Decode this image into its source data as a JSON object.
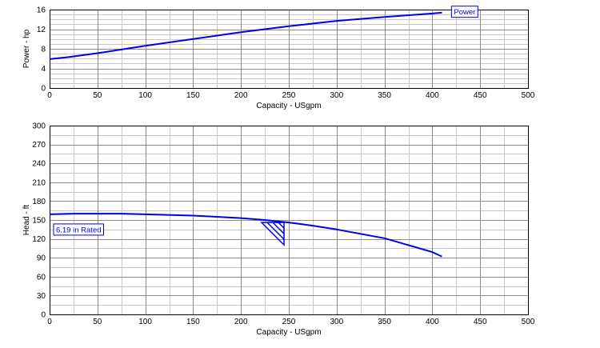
{
  "chart_data": [
    {
      "type": "line",
      "xlabel": "Capacity - USgpm",
      "ylabel": "Power - hp",
      "xlim": [
        0,
        500
      ],
      "ylim": [
        0,
        16
      ],
      "x_ticks": [
        "0",
        "50",
        "100",
        "150",
        "200",
        "250",
        "300",
        "350",
        "400",
        "450",
        "500"
      ],
      "y_ticks": [
        "0",
        "4",
        "8",
        "12",
        "16"
      ],
      "grid": true,
      "minor_grid": true,
      "series": [
        {
          "name": "Power",
          "color": "#0000ee",
          "x": [
            0,
            20,
            50,
            100,
            150,
            200,
            250,
            300,
            350,
            400,
            410
          ],
          "y": [
            5.9,
            6.3,
            7.1,
            8.6,
            10.0,
            11.4,
            12.6,
            13.7,
            14.5,
            15.2,
            15.4
          ]
        }
      ]
    },
    {
      "type": "line",
      "xlabel": "Capacity - USgpm",
      "ylabel": "Head - ft",
      "xlim": [
        0,
        500
      ],
      "ylim": [
        0,
        300
      ],
      "x_ticks": [
        "0",
        "50",
        "100",
        "150",
        "200",
        "250",
        "300",
        "350",
        "400",
        "450",
        "500"
      ],
      "y_ticks": [
        "0",
        "30",
        "60",
        "90",
        "120",
        "150",
        "180",
        "210",
        "240",
        "270",
        "300"
      ],
      "grid": true,
      "minor_grid": true,
      "series": [
        {
          "name": "6.19 in Rated",
          "color": "#0000ee",
          "x": [
            0,
            25,
            75,
            100,
            150,
            200,
            225,
            250,
            275,
            300,
            350,
            400,
            410
          ],
          "y": [
            159,
            160,
            160,
            159,
            157,
            153,
            150,
            146,
            141,
            135,
            121,
            99,
            92
          ]
        }
      ],
      "annotations": [
        {
          "type": "rated-point-marker",
          "x": 245,
          "y": 146
        }
      ]
    }
  ]
}
